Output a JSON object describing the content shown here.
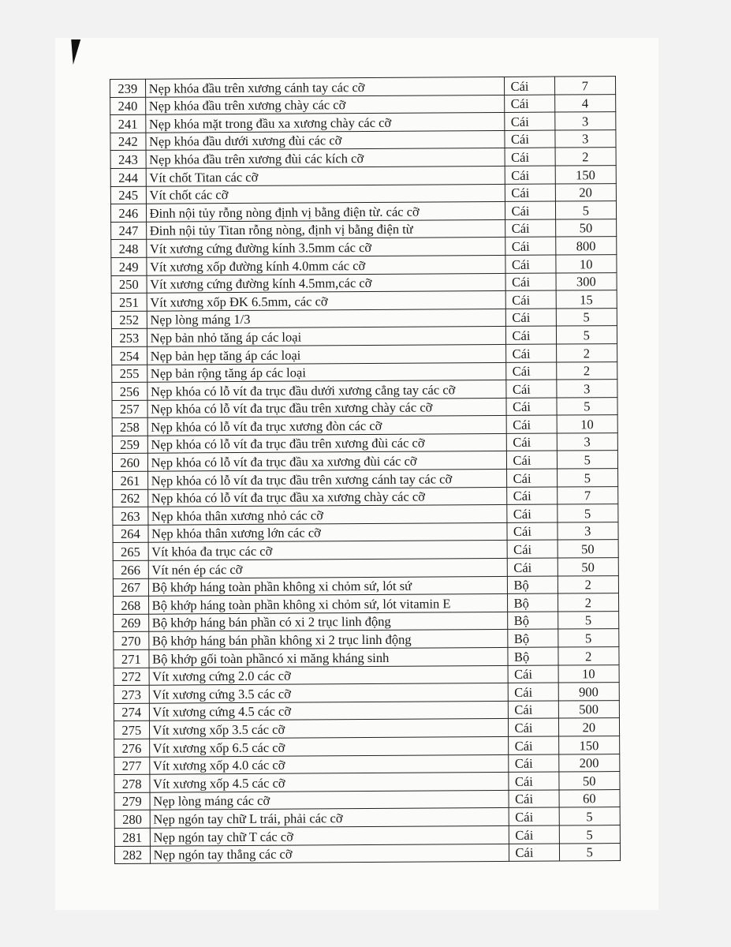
{
  "table": {
    "rows": [
      {
        "no": "239",
        "desc": "Nẹp khóa đầu trên xương cánh tay các cỡ",
        "unit": "Cái",
        "qty": "7"
      },
      {
        "no": "240",
        "desc": "Nẹp khóa đầu trên xương chày các cỡ",
        "unit": "Cái",
        "qty": "4"
      },
      {
        "no": "241",
        "desc": "Nẹp khóa mặt trong đầu xa xương chày các cỡ",
        "unit": "Cái",
        "qty": "3"
      },
      {
        "no": "242",
        "desc": "Nẹp khóa đầu dưới xương đùi các cỡ",
        "unit": "Cái",
        "qty": "3"
      },
      {
        "no": "243",
        "desc": "Nẹp khóa đầu trên xương đùi các kích cỡ",
        "unit": "Cái",
        "qty": "2"
      },
      {
        "no": "244",
        "desc": "Vít chốt Titan các cỡ",
        "unit": "Cái",
        "qty": "150"
      },
      {
        "no": "245",
        "desc": "Vít chốt các cỡ",
        "unit": "Cái",
        "qty": "20"
      },
      {
        "no": "246",
        "desc": "Đinh nội tủy rỗng nòng định vị bằng điện từ. các cỡ",
        "unit": "Cái",
        "qty": "5"
      },
      {
        "no": "247",
        "desc": "Đinh nội tủy Titan rỗng nòng, định vị bằng điện từ",
        "unit": "Cái",
        "qty": "50"
      },
      {
        "no": "248",
        "desc": "Vít xương cứng đường kính 3.5mm các cỡ",
        "unit": "Cái",
        "qty": "800"
      },
      {
        "no": "249",
        "desc": "Vít xương xốp đường kính 4.0mm các cỡ",
        "unit": "Cái",
        "qty": "10"
      },
      {
        "no": "250",
        "desc": "Vít xương cứng đường kính 4.5mm,các cỡ",
        "unit": "Cái",
        "qty": "300"
      },
      {
        "no": "251",
        "desc": "Vít xương xốp ĐK 6.5mm, các cỡ",
        "unit": "Cái",
        "qty": "15"
      },
      {
        "no": "252",
        "desc": "Nẹp lòng máng 1/3",
        "unit": "Cái",
        "qty": "5"
      },
      {
        "no": "253",
        "desc": "Nẹp bản nhỏ tăng áp các loại",
        "unit": "Cái",
        "qty": "5"
      },
      {
        "no": "254",
        "desc": "Nẹp bản hẹp tăng áp các loại",
        "unit": "Cái",
        "qty": "2"
      },
      {
        "no": "255",
        "desc": "Nẹp bản rộng tăng áp các loại",
        "unit": "Cái",
        "qty": "2"
      },
      {
        "no": "256",
        "desc": "Nẹp khóa có lỗ vít đa trục đầu dưới xương cẳng tay các cỡ",
        "unit": "Cái",
        "qty": "3"
      },
      {
        "no": "257",
        "desc": "Nẹp khóa có lỗ vít đa trục đầu trên xương chày các cỡ",
        "unit": "Cái",
        "qty": "5"
      },
      {
        "no": "258",
        "desc": "Nẹp khóa có lỗ vít đa trục xương đòn các cỡ",
        "unit": "Cái",
        "qty": "10"
      },
      {
        "no": "259",
        "desc": "Nẹp khóa có lỗ vít đa trục đầu trên xương đùi các cỡ",
        "unit": "Cái",
        "qty": "3"
      },
      {
        "no": "260",
        "desc": "Nẹp khóa có lỗ vít đa trục đầu xa xương đùi các cỡ",
        "unit": "Cái",
        "qty": "5"
      },
      {
        "no": "261",
        "desc": "Nẹp khóa có lỗ vít đa trục đầu trên xương cánh tay các cỡ",
        "unit": "Cái",
        "qty": "5"
      },
      {
        "no": "262",
        "desc": "Nẹp khóa có lỗ vít đa trục đầu xa xương chày các  cỡ",
        "unit": "Cái",
        "qty": "7"
      },
      {
        "no": "263",
        "desc": "Nẹp khóa  thân xương nhỏ các  cỡ",
        "unit": "Cái",
        "qty": "5"
      },
      {
        "no": "264",
        "desc": "Nẹp khóa thân xương lớn các cỡ",
        "unit": "Cái",
        "qty": "3"
      },
      {
        "no": "265",
        "desc": "Vít khóa đa trục các cỡ",
        "unit": "Cái",
        "qty": "50"
      },
      {
        "no": "266",
        "desc": "Vít nén ép các cỡ",
        "unit": "Cái",
        "qty": "50"
      },
      {
        "no": "267",
        "desc": "Bộ khớp háng toàn phần không xi chỏm sứ, lót sứ",
        "unit": "Bộ",
        "qty": "2"
      },
      {
        "no": "268",
        "desc": "Bộ khớp háng toàn phần không xi chỏm sứ, lót vitamin E",
        "unit": "Bộ",
        "qty": "2"
      },
      {
        "no": "269",
        "desc": "Bộ khớp háng bán phần có xi 2 trục linh động",
        "unit": "Bộ",
        "qty": "5"
      },
      {
        "no": "270",
        "desc": "Bộ khớp háng bán phần không xi 2 trục linh động",
        "unit": "Bộ",
        "qty": "5"
      },
      {
        "no": "271",
        "desc": "Bộ khớp gối toàn phầncó xi măng kháng sinh",
        "unit": "Bộ",
        "qty": "2"
      },
      {
        "no": "272",
        "desc": "Vít xương cứng 2.0 các cỡ",
        "unit": "Cái",
        "qty": "10"
      },
      {
        "no": "273",
        "desc": "Vít xương cứng 3.5 các cỡ",
        "unit": "Cái",
        "qty": "900"
      },
      {
        "no": "274",
        "desc": "Vít xương cứng 4.5 các cỡ",
        "unit": "Cái",
        "qty": "500"
      },
      {
        "no": "275",
        "desc": "Vít xương xốp 3.5 các cỡ",
        "unit": "Cái",
        "qty": "20"
      },
      {
        "no": "276",
        "desc": "Vít xương xốp 6.5 các cỡ",
        "unit": "Cái",
        "qty": "150"
      },
      {
        "no": "277",
        "desc": "Vít xương xốp 4.0 các cỡ",
        "unit": "Cái",
        "qty": "200"
      },
      {
        "no": "278",
        "desc": "Vít xương xốp 4.5 các cỡ",
        "unit": "Cái",
        "qty": "50"
      },
      {
        "no": "279",
        "desc": "Nẹp lòng máng các cỡ",
        "unit": "Cái",
        "qty": "60"
      },
      {
        "no": "280",
        "desc": "Nẹp ngón tay chữ L trái, phải các cỡ",
        "unit": "Cái",
        "qty": "5"
      },
      {
        "no": "281",
        "desc": "Nẹp ngón tay chữ T các cỡ",
        "unit": "Cái",
        "qty": "5"
      },
      {
        "no": "282",
        "desc": "Nẹp ngón tay thẳng các cỡ",
        "unit": "Cái",
        "qty": "5"
      }
    ]
  }
}
